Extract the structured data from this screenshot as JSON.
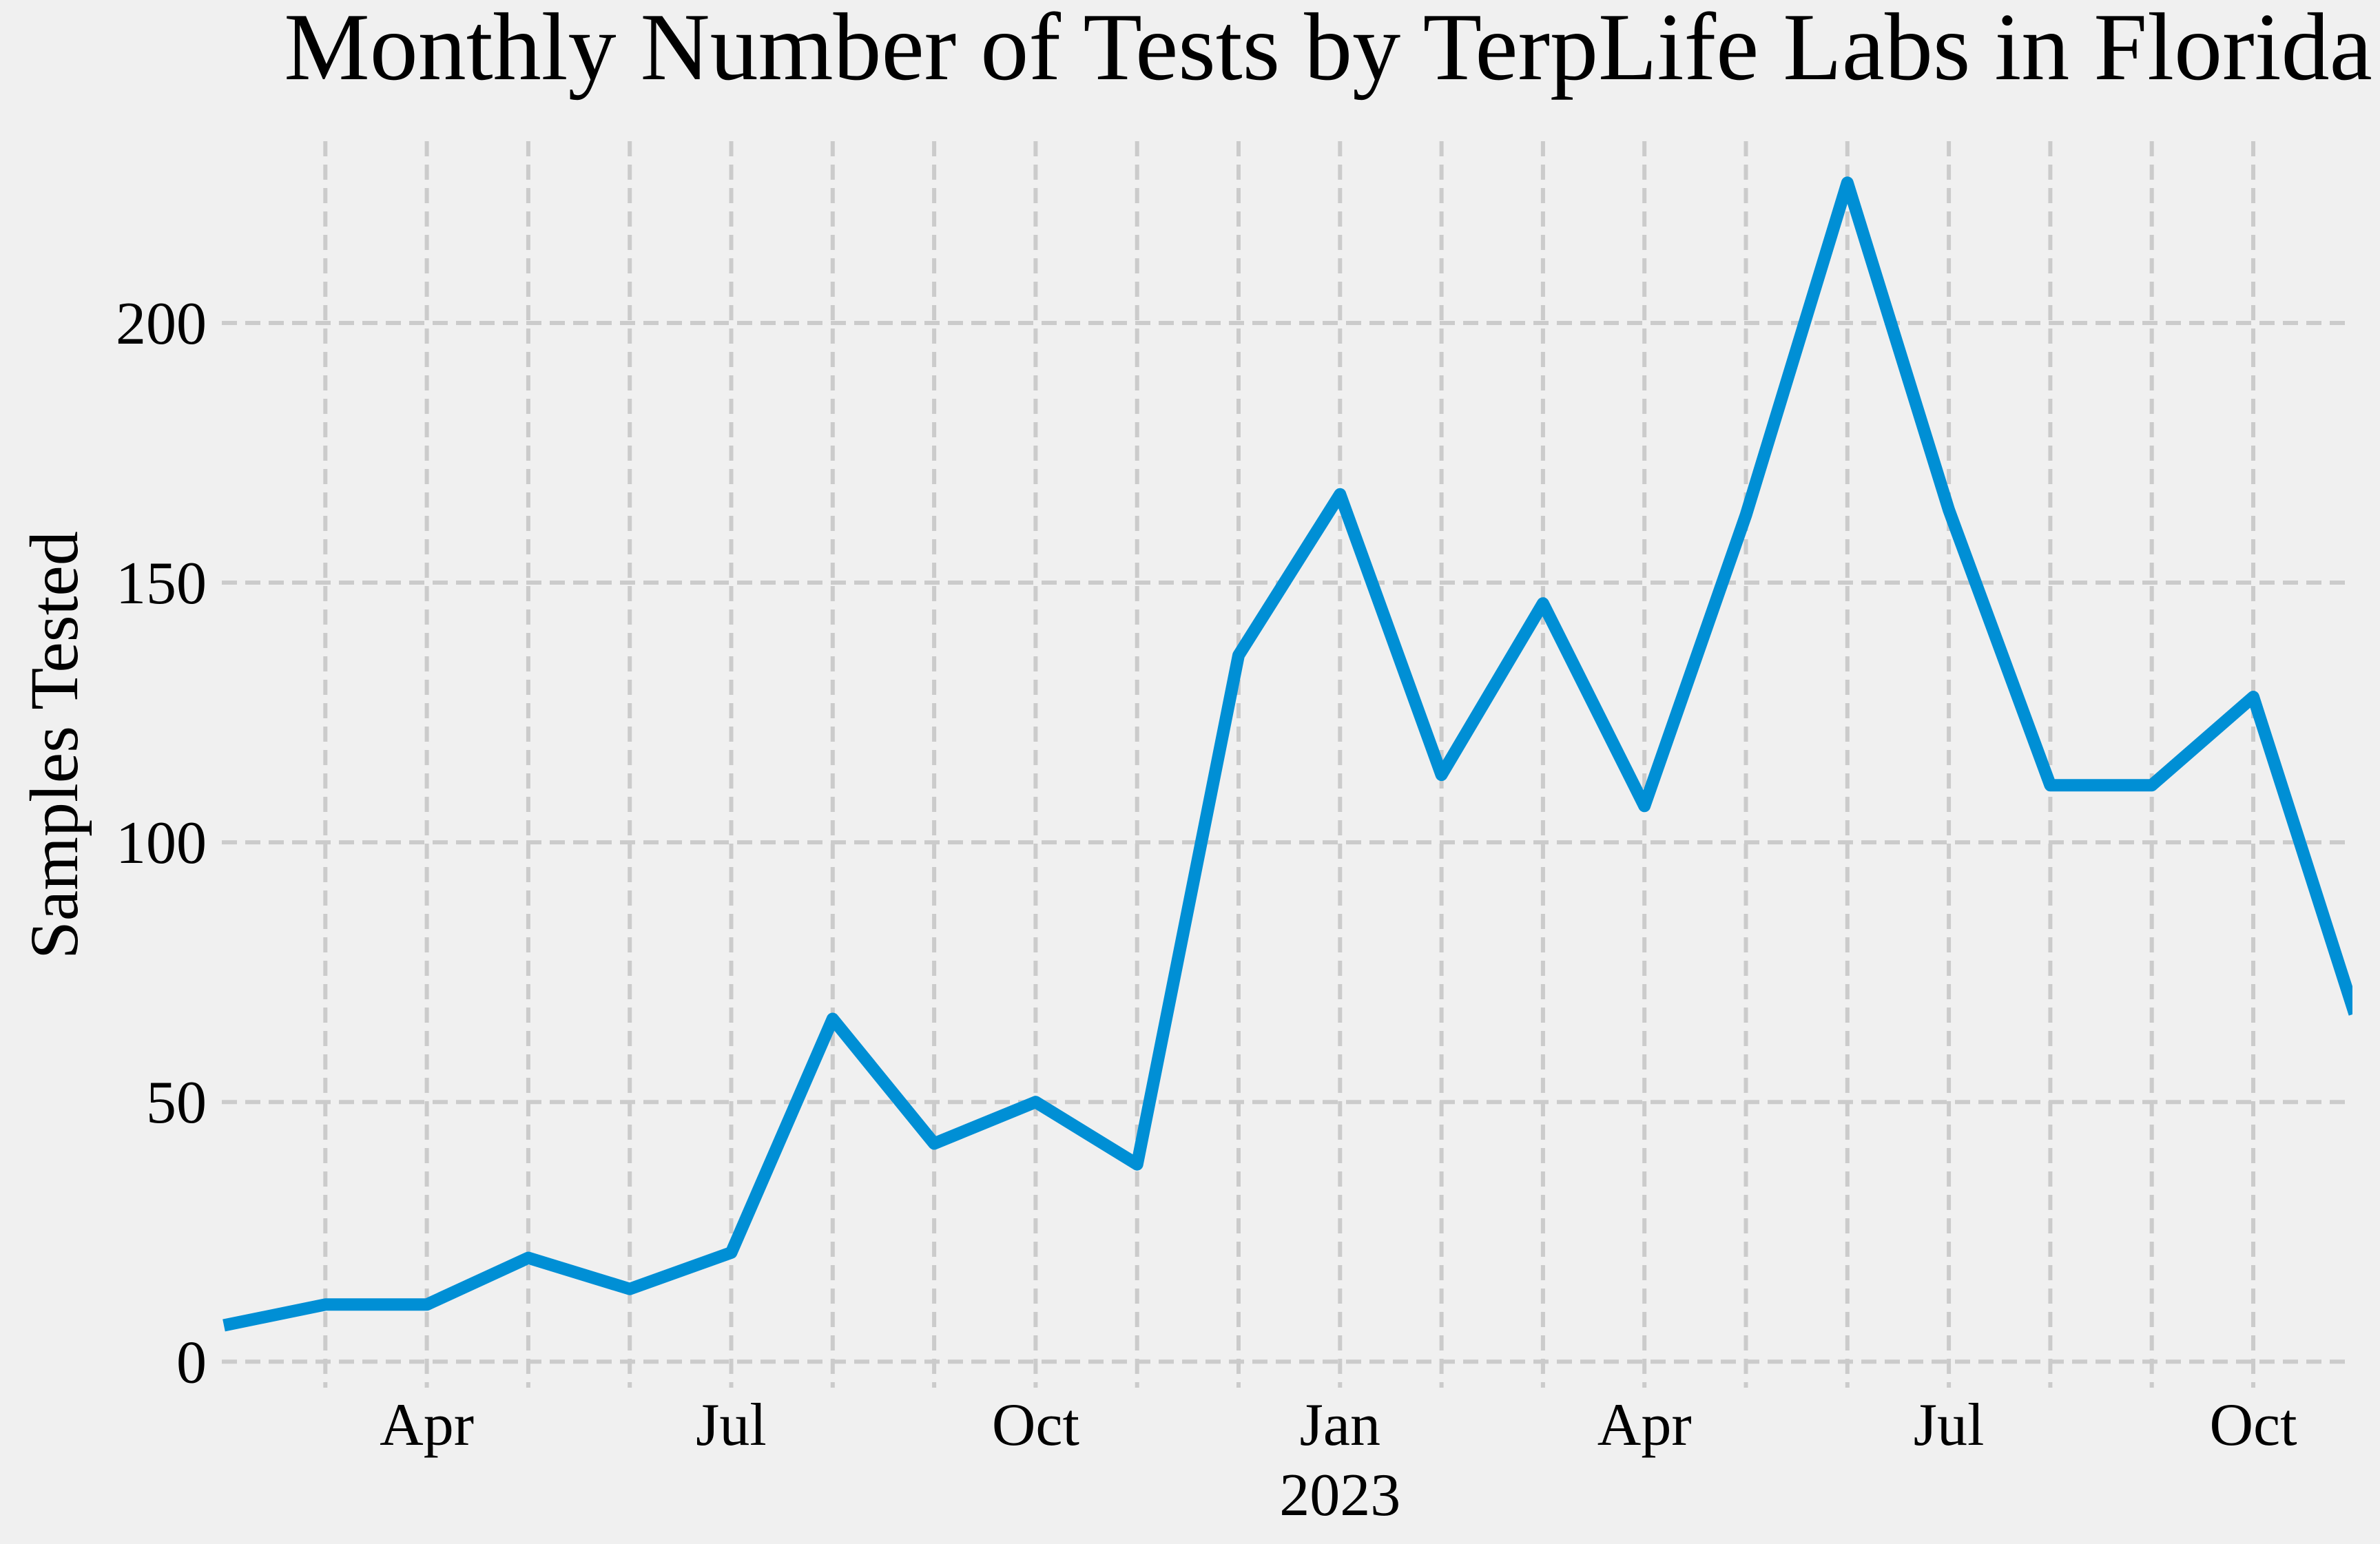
{
  "chart_data": {
    "type": "line",
    "title": "Monthly Number of Tests by TerpLife Labs in Florida",
    "xlabel": "",
    "ylabel": "Samples Tested",
    "x": [
      "2022-02",
      "2022-03",
      "2022-04",
      "2022-05",
      "2022-06",
      "2022-07",
      "2022-08",
      "2022-09",
      "2022-10",
      "2022-11",
      "2022-12",
      "2023-01",
      "2023-02",
      "2023-03",
      "2023-04",
      "2023-05",
      "2023-06",
      "2023-07",
      "2023-08",
      "2023-09",
      "2023-10",
      "2023-11"
    ],
    "series": [
      {
        "values": [
          7,
          11,
          11,
          20,
          14,
          21,
          66,
          42,
          50,
          38,
          136,
          167,
          113,
          146,
          107,
          163,
          227,
          164,
          111,
          111,
          128,
          67
        ]
      }
    ],
    "x_ticks": [
      {
        "month": "2022-04",
        "label": "Apr"
      },
      {
        "month": "2022-07",
        "label": "Jul"
      },
      {
        "month": "2022-10",
        "label": "Oct"
      },
      {
        "month": "2023-01",
        "label": "Jan"
      },
      {
        "month": "2023-04",
        "label": "Apr"
      },
      {
        "month": "2023-07",
        "label": "Jul"
      },
      {
        "month": "2023-10",
        "label": "Oct"
      }
    ],
    "x_minor_ticks": [
      "2022-03",
      "2022-05",
      "2022-06",
      "2022-08",
      "2022-09",
      "2022-11",
      "2022-12",
      "2023-02",
      "2023-03",
      "2023-05",
      "2023-06",
      "2023-08",
      "2023-09"
    ],
    "year_label": "2023",
    "y_ticks": [
      "0",
      "50",
      "100",
      "150",
      "200"
    ],
    "ylim": [
      -5,
      235
    ],
    "grid": true,
    "colors": {
      "line": "#008fd5",
      "grid": "#cbcbcb",
      "background": "#f0f0f0"
    }
  }
}
